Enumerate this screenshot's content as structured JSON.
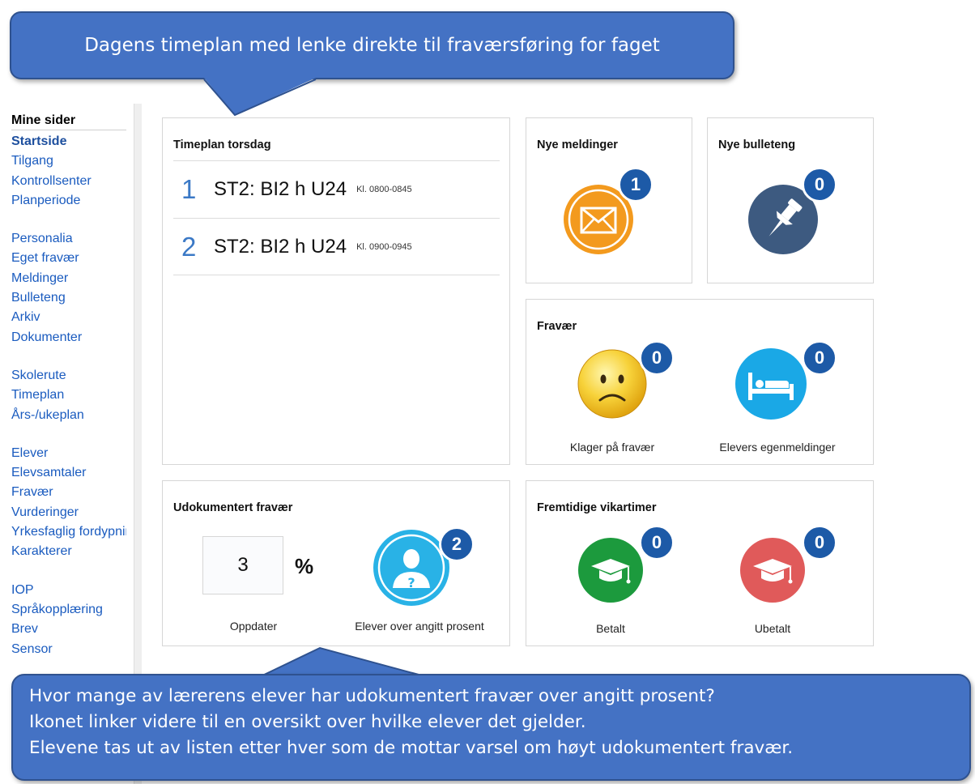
{
  "callouts": {
    "top": "Dagens timeplan med lenke direkte til fraværsføring for faget",
    "bottom_lines": [
      "Hvor mange av lærerens elever har udokumentert fravær over angitt prosent?",
      "Ikonet linker videre til en oversikt over hvilke elever det gjelder.",
      "Elevene tas ut av listen etter hver som de mottar varsel om høyt udokumentert fravær."
    ]
  },
  "sidebar": {
    "title": "Mine sider",
    "groups": [
      [
        "Startside",
        "Tilgang",
        "Kontrollsenter",
        "Planperiode"
      ],
      [
        "Personalia",
        "Eget fravær",
        "Meldinger",
        "Bulleteng",
        "Arkiv",
        "Dokumenter"
      ],
      [
        "Skolerute",
        "Timeplan",
        "Års-/ukeplan"
      ],
      [
        "Elever",
        "Elevsamtaler",
        "Fravær",
        "Vurderinger",
        "Yrkesfaglig fordypning",
        "Karakterer"
      ],
      [
        "IOP",
        "Språkopplæring",
        "Brev",
        "Sensor"
      ]
    ],
    "active": "Startside"
  },
  "timeplan": {
    "title": "Timeplan torsdag",
    "lessons": [
      {
        "num": "1",
        "name": "ST2: BI2 h U24",
        "time": "Kl. 0800-0845"
      },
      {
        "num": "2",
        "name": "ST2: BI2 h U24",
        "time": "Kl. 0900-0945"
      }
    ]
  },
  "meldinger": {
    "title": "Nye meldinger",
    "count": "1",
    "icon": "envelope-icon",
    "color": "#f39a1e"
  },
  "bulleteng": {
    "title": "Nye bulleteng",
    "count": "0",
    "icon": "pushpin-icon",
    "color": "#3d5a80"
  },
  "fravaer": {
    "title": "Fravær",
    "items": [
      {
        "label": "Klager på fravær",
        "count": "0",
        "icon": "sad-face-icon",
        "color": "#f7c21b"
      },
      {
        "label": "Elevers egenmeldinger",
        "count": "0",
        "icon": "bed-icon",
        "color": "#1aa8e6"
      }
    ]
  },
  "udokumentert": {
    "title": "Udokumentert fravær",
    "percent_value": "3",
    "percent_sign": "%",
    "update_label": "Oppdater",
    "students_label": "Elever over angitt prosent",
    "students_count": "2",
    "icon": "student-question-icon",
    "color": "#29b2e6"
  },
  "vikartimer": {
    "title": "Fremtidige vikartimer",
    "items": [
      {
        "label": "Betalt",
        "count": "0",
        "icon": "graduation-cap-icon",
        "color": "#1c9a3d"
      },
      {
        "label": "Ubetalt",
        "count": "0",
        "icon": "graduation-cap-icon",
        "color": "#e05a5a"
      }
    ]
  },
  "badge_color": "#1d5aa7",
  "link_color": "#1a5bbf"
}
